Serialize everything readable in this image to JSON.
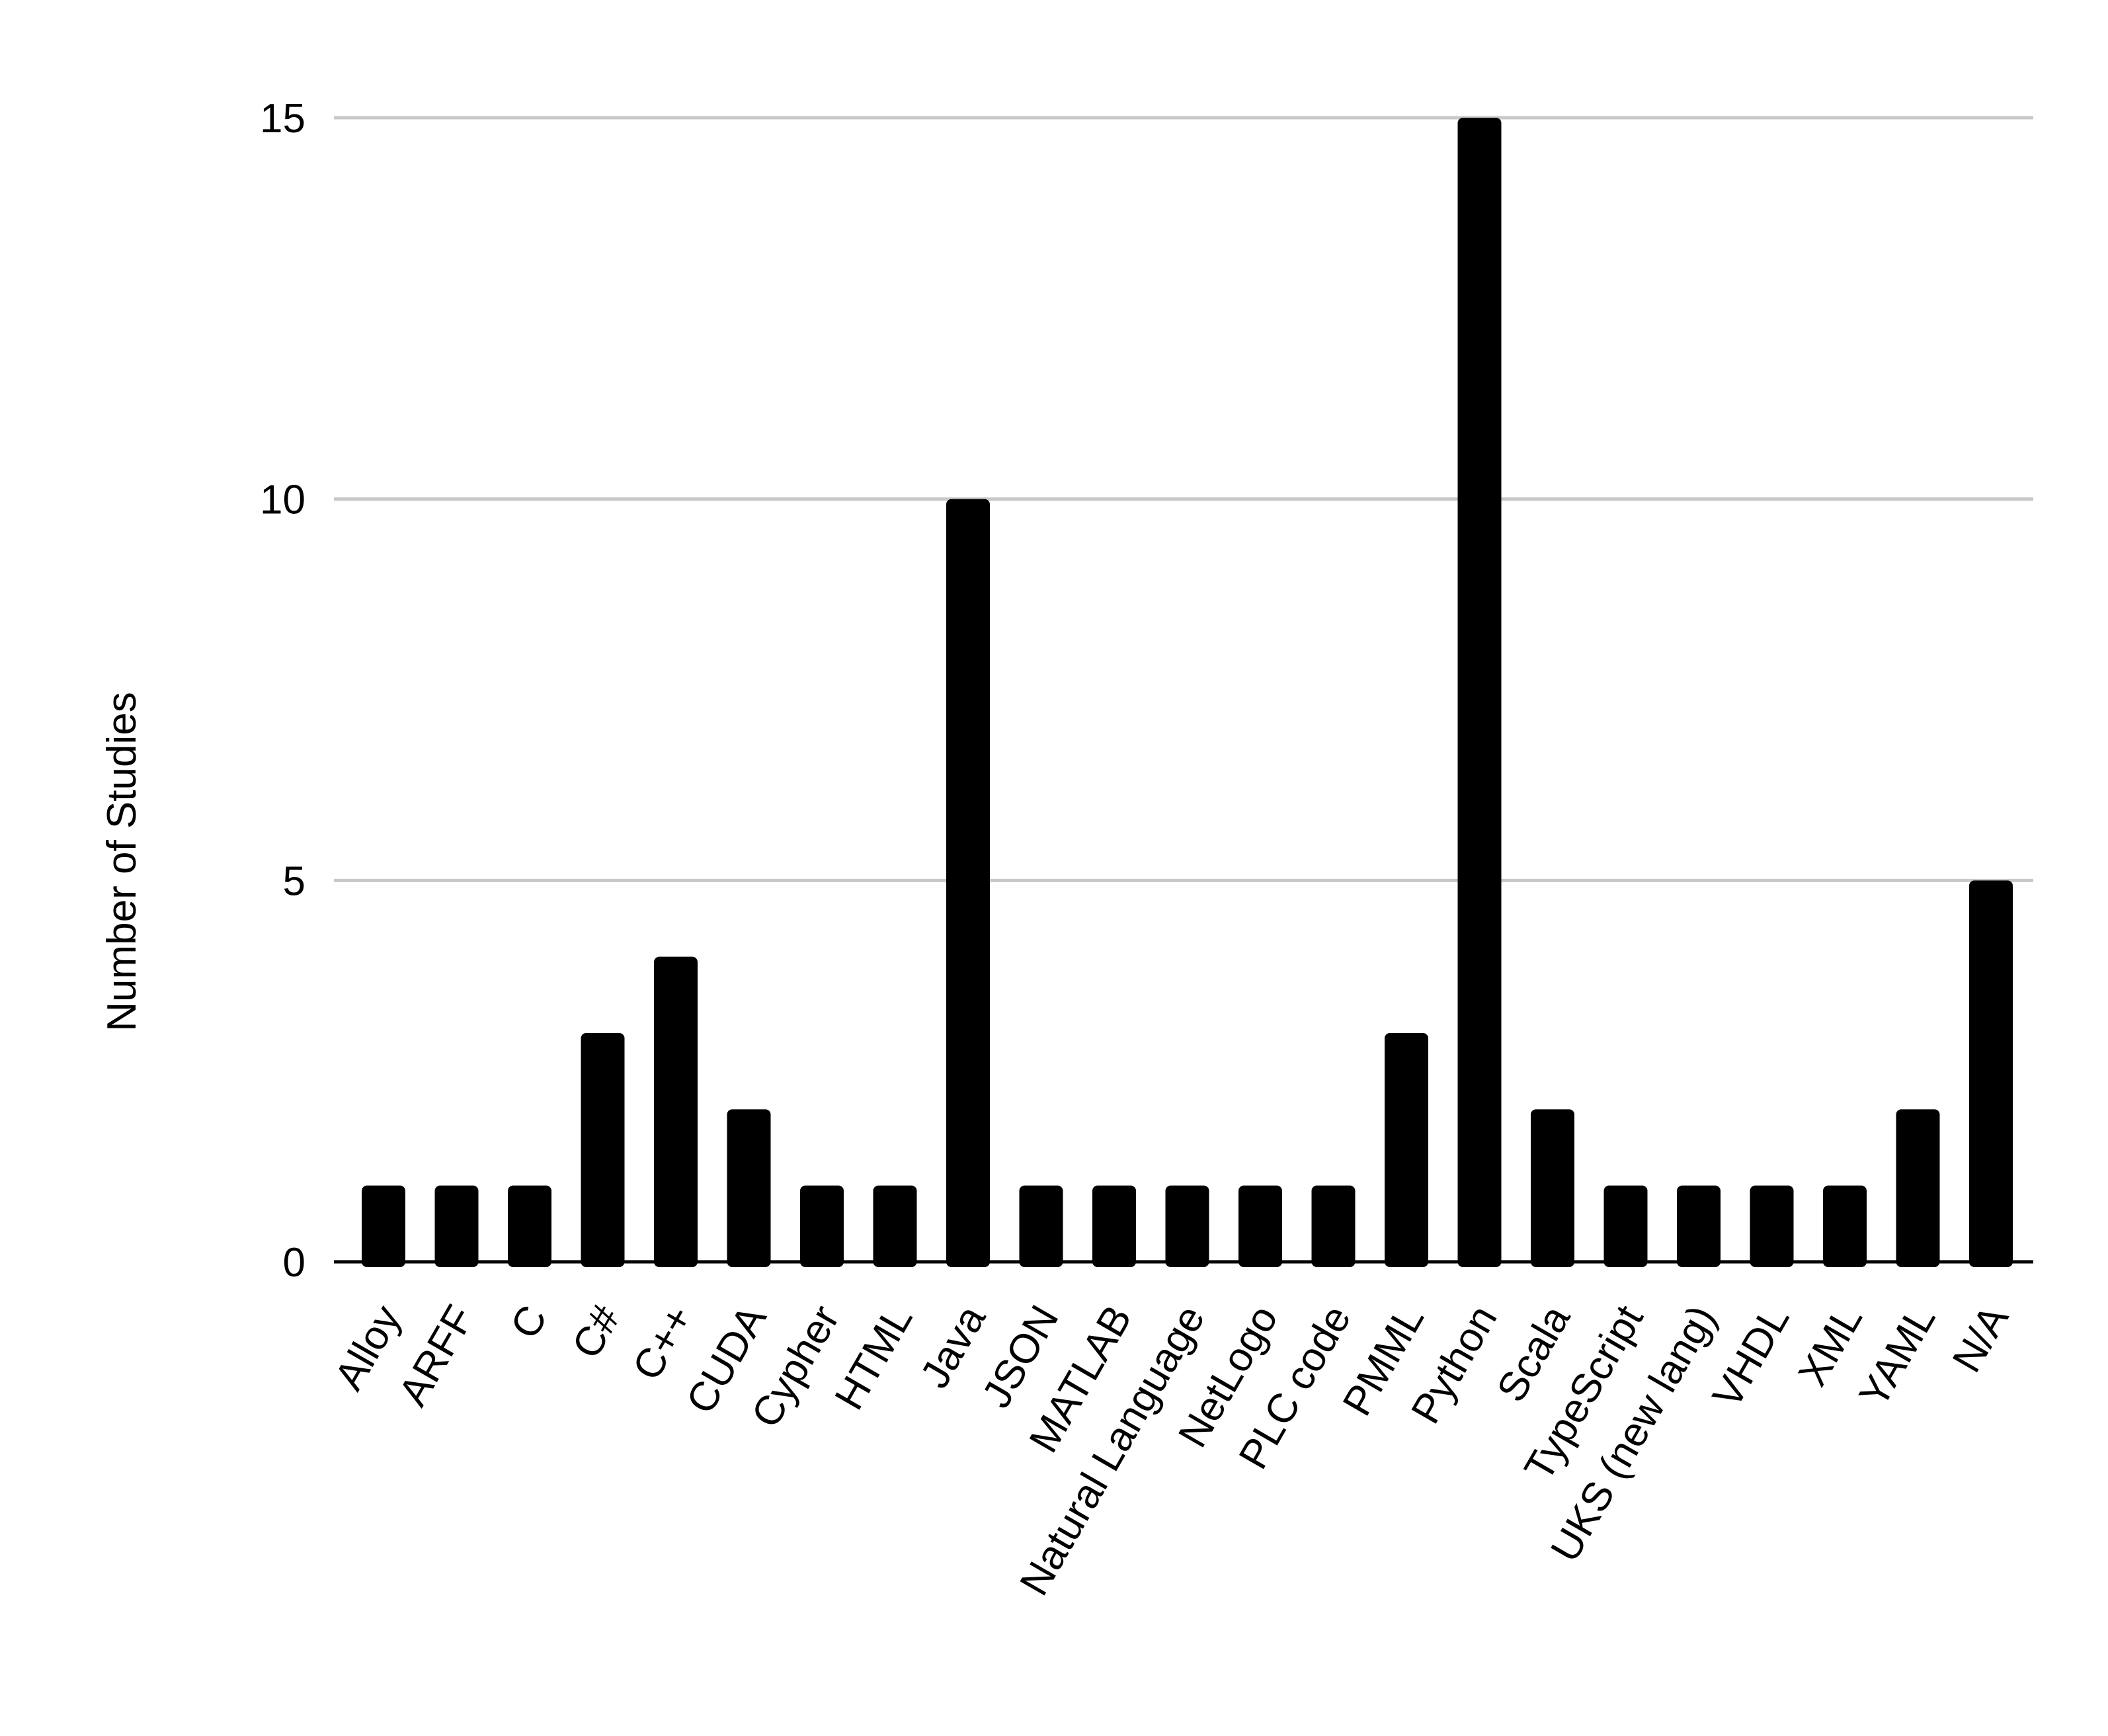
{
  "chart_data": {
    "type": "bar",
    "title": "",
    "xlabel": "",
    "ylabel": "Number of Studies",
    "ylim": [
      0,
      15
    ],
    "yticks": [
      0,
      5,
      10,
      15
    ],
    "grid": true,
    "legend": "none",
    "categories": [
      "Alloy",
      "ARFF",
      "C",
      "C#",
      "C++",
      "CUDA",
      "Cypher",
      "HTML",
      "Java",
      "JSON",
      "MATLAB",
      "Natural Language",
      "NetLogo",
      "PLC code",
      "PMML",
      "Python",
      "Scala",
      "TypeScript",
      "UKS (new lang)",
      "VHDL",
      "XML",
      "YAML",
      "N/A"
    ],
    "values": [
      1,
      1,
      1,
      3,
      4,
      2,
      1,
      1,
      10,
      1,
      1,
      1,
      1,
      1,
      3,
      15,
      2,
      1,
      1,
      1,
      1,
      2,
      5
    ],
    "colors": {
      "bar": "#000000",
      "grid": "#c8c8c8",
      "axis": "#000000",
      "text": "#000000"
    }
  }
}
